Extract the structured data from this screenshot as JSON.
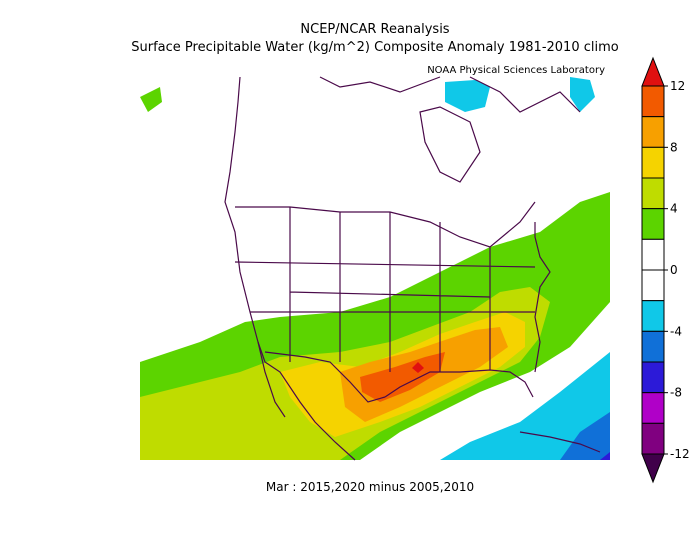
{
  "title_line1": "NCEP/NCAR Reanalysis",
  "title_line2": "Surface Precipitable Water (kg/m^2) Composite Anomaly 1981-2010 climo",
  "credit": "NOAA Physical Sciences Laboratory",
  "footer": "Mar : 2015,2020 minus 2005,2010",
  "colorbar": {
    "ticks": [
      "12",
      "8",
      "4",
      "0",
      "-4",
      "-8",
      "-12"
    ],
    "bins": [
      {
        "range": "> 12",
        "color": "#e01010"
      },
      {
        "range": "10 to 12",
        "color": "#f25a00"
      },
      {
        "range": "8 to 10",
        "color": "#f7a000"
      },
      {
        "range": "6 to 8",
        "color": "#f5d300"
      },
      {
        "range": "4 to 6",
        "color": "#bfdc00"
      },
      {
        "range": "2 to 4",
        "color": "#5cd400"
      },
      {
        "range": "0 to 2",
        "color": "#ffffff"
      },
      {
        "range": "-2 to 0",
        "color": "#ffffff"
      },
      {
        "range": "-4 to -2",
        "color": "#10c8e8"
      },
      {
        "range": "-6 to -4",
        "color": "#1070d8"
      },
      {
        "range": "-8 to -6",
        "color": "#2c1ad8"
      },
      {
        "range": "-10 to -8",
        "color": "#b000c8"
      },
      {
        "range": "-12 to -10",
        "color": "#800080"
      },
      {
        "range": "< -12",
        "color": "#40004a"
      }
    ]
  },
  "colors": {
    "boundary": "#4a0a4a"
  }
}
